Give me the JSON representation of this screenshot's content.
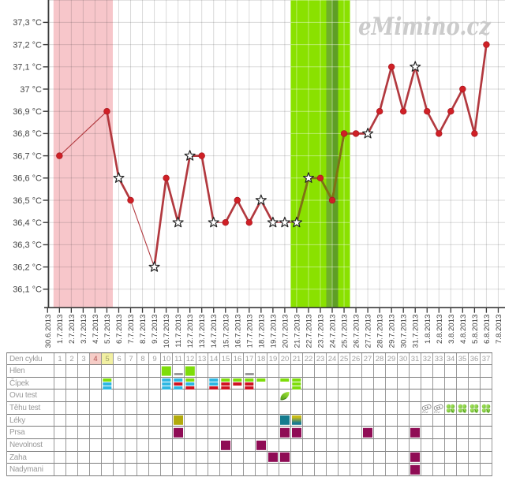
{
  "watermark": "eMimino.cz",
  "chart_data": {
    "type": "line",
    "title": "",
    "ylabel": "",
    "xlabel": "",
    "y_unit": "°C",
    "ylim": [
      36.1,
      37.3
    ],
    "y_tick_step": 0.1,
    "grid": true,
    "x_dates": [
      "30.6.2013",
      "1.7.2013",
      "2.7.2013",
      "3.7.2013",
      "4.7.2013",
      "5.7.2013",
      "6.7.2013",
      "7.7.2013",
      "8.7.2013",
      "9.7.2013",
      "10.7.2013",
      "11.7.2013",
      "12.7.2013",
      "13.7.2013",
      "14.7.2013",
      "15.7.2013",
      "16.7.2013",
      "17.7.2013",
      "18.7.2013",
      "19.7.2013",
      "20.7.2013",
      "21.7.2013",
      "22.7.2013",
      "23.7.2013",
      "24.7.2013",
      "25.7.2013",
      "26.7.2013",
      "27.7.2013",
      "28.7.2013",
      "29.7.2013",
      "30.7.2013",
      "31.7.2013",
      "1.8.2013",
      "2.8.2013",
      "3.8.2013",
      "4.8.2013",
      "5.8.2013",
      "6.8.2013",
      "7.8.2013"
    ],
    "series": [
      {
        "date": "1.7.2013",
        "temp": 36.7,
        "marker": "dot"
      },
      {
        "date": "5.7.2013",
        "temp": 36.9,
        "marker": "dot"
      },
      {
        "date": "6.7.2013",
        "temp": 36.6,
        "marker": "star"
      },
      {
        "date": "7.7.2013",
        "temp": 36.5,
        "marker": "dot"
      },
      {
        "date": "9.7.2013",
        "temp": 36.2,
        "marker": "star"
      },
      {
        "date": "10.7.2013",
        "temp": 36.6,
        "marker": "dot"
      },
      {
        "date": "11.7.2013",
        "temp": 36.4,
        "marker": "star"
      },
      {
        "date": "12.7.2013",
        "temp": 36.7,
        "marker": "star"
      },
      {
        "date": "13.7.2013",
        "temp": 36.7,
        "marker": "dot"
      },
      {
        "date": "14.7.2013",
        "temp": 36.4,
        "marker": "star"
      },
      {
        "date": "15.7.2013",
        "temp": 36.4,
        "marker": "dot"
      },
      {
        "date": "16.7.2013",
        "temp": 36.5,
        "marker": "dot"
      },
      {
        "date": "17.7.2013",
        "temp": 36.4,
        "marker": "dot"
      },
      {
        "date": "18.7.2013",
        "temp": 36.5,
        "marker": "star"
      },
      {
        "date": "19.7.2013",
        "temp": 36.4,
        "marker": "star"
      },
      {
        "date": "20.7.2013",
        "temp": 36.4,
        "marker": "star"
      },
      {
        "date": "21.7.2013",
        "temp": 36.4,
        "marker": "star"
      },
      {
        "date": "22.7.2013",
        "temp": 36.6,
        "marker": "star"
      },
      {
        "date": "23.7.2013",
        "temp": 36.6,
        "marker": "dot"
      },
      {
        "date": "24.7.2013",
        "temp": 36.5,
        "marker": "dot"
      },
      {
        "date": "25.7.2013",
        "temp": 36.8,
        "marker": "dot"
      },
      {
        "date": "26.7.2013",
        "temp": 36.8,
        "marker": "dot"
      },
      {
        "date": "27.7.2013",
        "temp": 36.8,
        "marker": "star"
      },
      {
        "date": "28.7.2013",
        "temp": 36.9,
        "marker": "dot"
      },
      {
        "date": "29.7.2013",
        "temp": 37.1,
        "marker": "dot"
      },
      {
        "date": "30.7.2013",
        "temp": 36.9,
        "marker": "dot"
      },
      {
        "date": "31.7.2013",
        "temp": 37.1,
        "marker": "star"
      },
      {
        "date": "1.8.2013",
        "temp": 36.9,
        "marker": "dot"
      },
      {
        "date": "2.8.2013",
        "temp": 36.8,
        "marker": "dot"
      },
      {
        "date": "3.8.2013",
        "temp": 36.9,
        "marker": "dot"
      },
      {
        "date": "4.8.2013",
        "temp": 37.0,
        "marker": "dot"
      },
      {
        "date": "5.8.2013",
        "temp": 36.8,
        "marker": "dot"
      },
      {
        "date": "6.8.2013",
        "temp": 37.2,
        "marker": "dot"
      }
    ],
    "thin_segments": [
      [
        "1.7.2013",
        "5.7.2013"
      ],
      [
        "7.7.2013",
        "9.7.2013"
      ],
      [
        "14.7.2013",
        "15.7.2013"
      ],
      [
        "19.7.2013",
        "20.7.2013"
      ],
      [
        "20.7.2013",
        "21.7.2013"
      ]
    ],
    "bands": {
      "menstruation": {
        "from": "1.7.2013",
        "to": "5.7.2013",
        "color": "#f7c6ca"
      },
      "fertile": {
        "from": "21.7.2013",
        "to": "25.7.2013",
        "color": "#8ae100"
      },
      "ovulation": {
        "date": "24.7.2013",
        "color_left": "#6fb02a",
        "color_right": "#5f9e26"
      }
    },
    "colors": {
      "line": "#b2393f",
      "dot": "#cf2026",
      "star_fill": "#ffffff",
      "star_stroke": "#222222",
      "grid": "#dddddd",
      "axis": "#3a3a3a",
      "tick_label": "#444444"
    }
  },
  "table": {
    "row_labels": [
      "Den cyklu",
      "Hlen",
      "Čípek",
      "Ovu test",
      "Těhu test",
      "Léky",
      "Prsa",
      "Nevolnost",
      "Zaha",
      "Nadymani"
    ],
    "day_numbers": [
      1,
      2,
      3,
      4,
      5,
      6,
      7,
      8,
      9,
      10,
      11,
      12,
      13,
      14,
      15,
      16,
      17,
      18,
      19,
      20,
      21,
      22,
      23,
      24,
      25,
      26,
      27,
      28,
      29,
      30,
      31,
      32,
      33,
      34,
      35,
      36,
      37
    ],
    "day_highlights": {
      "4": {
        "bg": "#f6cdc7",
        "fg": "#b25252"
      },
      "5": {
        "bg": "#f2f0a2",
        "fg": "#a5a56a"
      }
    },
    "hlen": {
      "10": "green-square",
      "11": "gray-dash",
      "12": "green-square",
      "17": "gray-dash"
    },
    "cipek": {
      "5": [
        "green",
        "cyan",
        "cyan"
      ],
      "10": [
        "cyan",
        "cyan",
        "cyan"
      ],
      "11": [
        "cyan",
        "red",
        "cyan"
      ],
      "12": [
        "green",
        "cyan",
        "red"
      ],
      "14": [
        "cyan",
        "cyan",
        "red"
      ],
      "15": [
        "green",
        "red",
        "red"
      ],
      "16": [
        "green",
        "red",
        null
      ],
      "17": [
        "green",
        "red",
        "red"
      ],
      "18": [
        "green",
        null,
        null
      ],
      "20": [
        "green",
        null,
        null
      ],
      "21": [
        "green",
        "green",
        "green"
      ]
    },
    "ovu_test": {
      "20": "leaf"
    },
    "tehu_test": {
      "32": "test-stick",
      "33": "test-stick",
      "34": "clover",
      "35": "clover",
      "36": "clover",
      "37": "clover"
    },
    "leky": {
      "11": "olive",
      "20": "teal",
      "21": "olive-teal"
    },
    "prsa": [
      11,
      20,
      21,
      27,
      31
    ],
    "nevolnost": [
      15,
      18
    ],
    "zaha": [
      19,
      20,
      31
    ],
    "nadymani": [
      31
    ],
    "mark_colors": {
      "green": "#7edd0a",
      "cyan": "#2db7e2",
      "red": "#d01322",
      "gray": "#9a9a9a",
      "olive": "#b2aa0c",
      "teal": "#157c8e",
      "magenta": "#8f0c55",
      "clover": "#61bf2a",
      "leaf": "#7ac327"
    }
  }
}
